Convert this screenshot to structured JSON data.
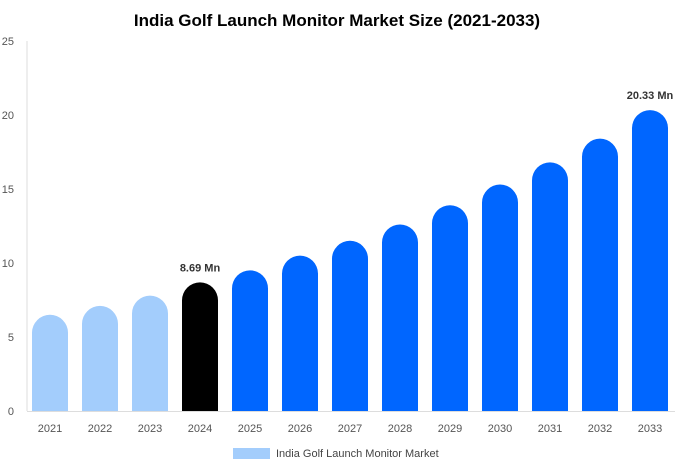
{
  "chart_data": {
    "type": "bar",
    "title": "India Golf Launch Monitor Market Size (2021-2033)",
    "xlabel": "",
    "ylabel": "",
    "ylim": [
      0,
      25
    ],
    "yticks": [
      0,
      5,
      10,
      15,
      20,
      25
    ],
    "categories": [
      "2021",
      "2022",
      "2023",
      "2024",
      "2025",
      "2026",
      "2027",
      "2028",
      "2029",
      "2030",
      "2031",
      "2032",
      "2033"
    ],
    "series": [
      {
        "name": "India Golf Launch Monitor Market",
        "values": [
          6.5,
          7.1,
          7.8,
          8.69,
          9.5,
          10.5,
          11.5,
          12.6,
          13.9,
          15.3,
          16.8,
          18.4,
          20.33
        ]
      }
    ],
    "data_labels": [
      {
        "category": "2024",
        "text": "8.69 Mn"
      },
      {
        "category": "2033",
        "text": "20.33 Mn"
      }
    ],
    "colors": {
      "historical": "#a3cdfc",
      "current": "#000000",
      "forecast": "#0066ff"
    },
    "historical_years": [
      "2021",
      "2022",
      "2023"
    ],
    "current_year": "2024",
    "grid": false,
    "legend_position": "bottom"
  }
}
